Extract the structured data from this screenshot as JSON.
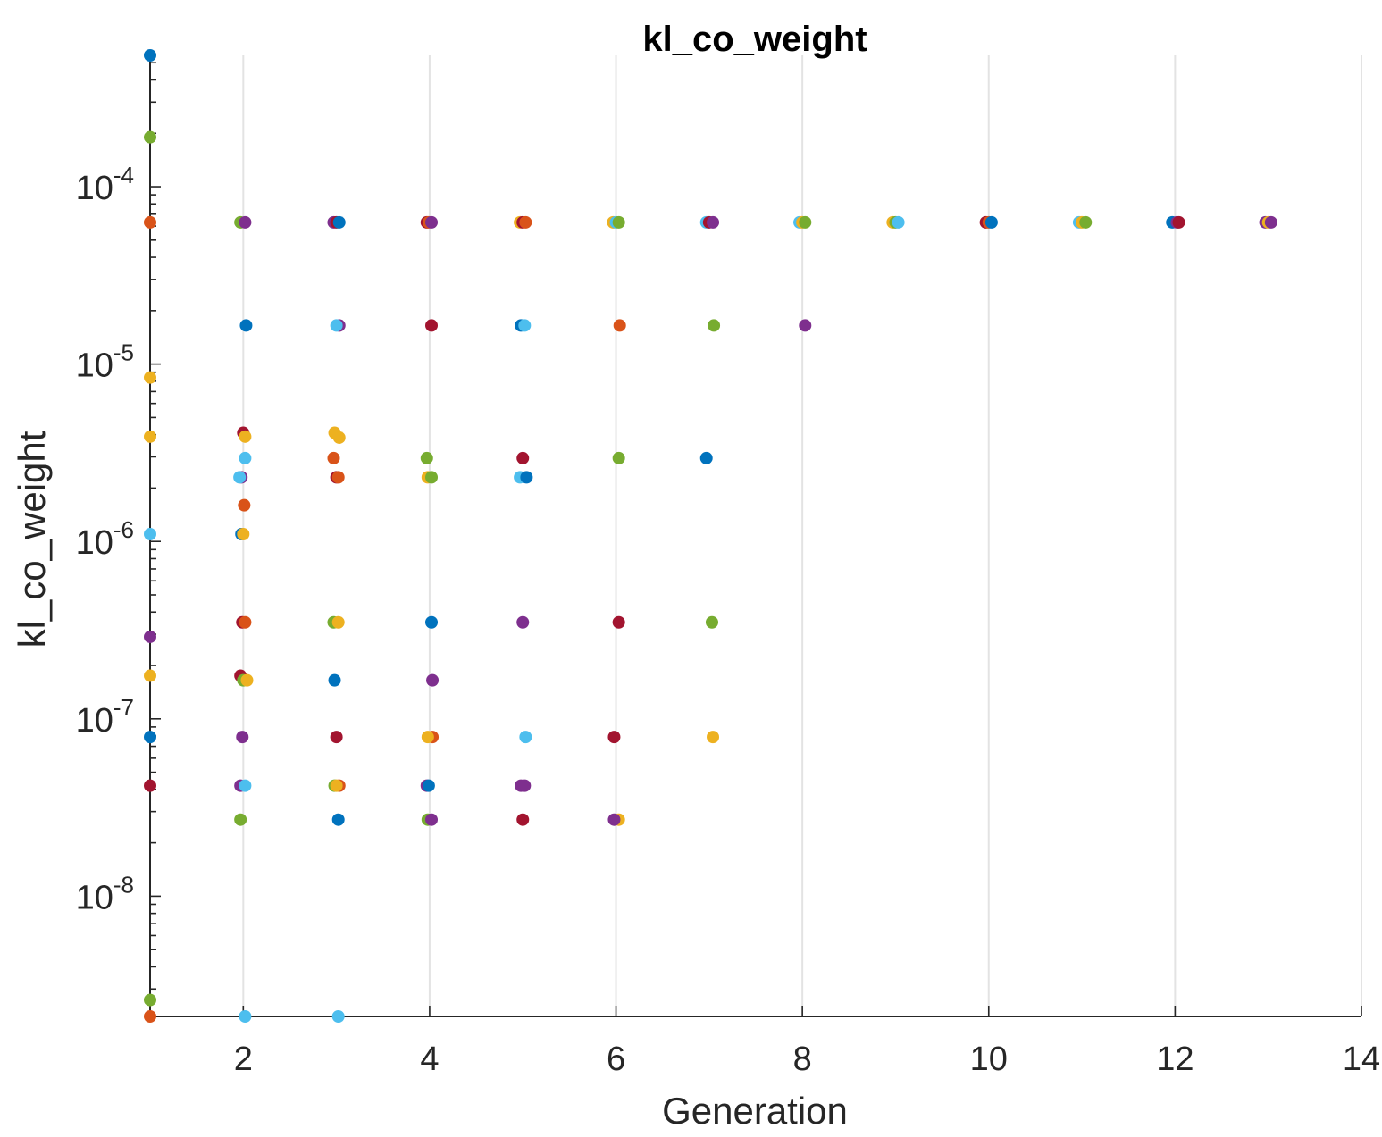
{
  "chart_data": {
    "type": "scatter",
    "title": "kl_co_weight",
    "xlabel": "Generation",
    "ylabel": "kl_co_weight",
    "xlim": [
      1,
      14
    ],
    "ylim": [
      2.1e-09,
      0.00055
    ],
    "yscale": "log",
    "grid": "x-major",
    "x_ticks": [
      {
        "value": 2,
        "label": "2"
      },
      {
        "value": 4,
        "label": "4"
      },
      {
        "value": 6,
        "label": "6"
      },
      {
        "value": 8,
        "label": "8"
      },
      {
        "value": 10,
        "label": "10"
      },
      {
        "value": 12,
        "label": "12"
      },
      {
        "value": 14,
        "label": "14"
      }
    ],
    "y_ticks": [
      {
        "value": 1e-08,
        "base": "10",
        "exp": "-8"
      },
      {
        "value": 1e-07,
        "base": "10",
        "exp": "-7"
      },
      {
        "value": 1e-06,
        "base": "10",
        "exp": "-6"
      },
      {
        "value": 1e-05,
        "base": "10",
        "exp": "-5"
      },
      {
        "value": 0.0001,
        "base": "10",
        "exp": "-4"
      }
    ],
    "palette": {
      "blue": "#0072BD",
      "orange": "#D95319",
      "yellow": "#EDB120",
      "purple": "#7E2F8E",
      "green": "#77AC30",
      "cyan": "#4DBEEE",
      "red": "#A2142F"
    },
    "points": [
      {
        "x": 1.0,
        "y": 0.00055,
        "color": "blue"
      },
      {
        "x": 1.0,
        "y": 0.00019,
        "color": "green"
      },
      {
        "x": 1.0,
        "y": 6.3e-05,
        "color": "orange"
      },
      {
        "x": 1.0,
        "y": 8.4e-06,
        "color": "yellow"
      },
      {
        "x": 1.0,
        "y": 3.9e-06,
        "color": "yellow"
      },
      {
        "x": 1.0,
        "y": 1.1e-06,
        "color": "cyan"
      },
      {
        "x": 1.0,
        "y": 2.9e-07,
        "color": "purple"
      },
      {
        "x": 1.0,
        "y": 1.75e-07,
        "color": "yellow"
      },
      {
        "x": 1.0,
        "y": 7.9e-08,
        "color": "blue"
      },
      {
        "x": 1.0,
        "y": 4.2e-08,
        "color": "red"
      },
      {
        "x": 1.0,
        "y": 2.6e-09,
        "color": "green"
      },
      {
        "x": 1.0,
        "y": 2.1e-09,
        "color": "orange"
      },
      {
        "x": 1.97,
        "y": 6.3e-05,
        "color": "green"
      },
      {
        "x": 2.02,
        "y": 6.3e-05,
        "color": "purple"
      },
      {
        "x": 2.03,
        "y": 1.65e-05,
        "color": "blue"
      },
      {
        "x": 2.0,
        "y": 4.1e-06,
        "color": "red"
      },
      {
        "x": 2.02,
        "y": 3.9e-06,
        "color": "yellow"
      },
      {
        "x": 2.02,
        "y": 2.95e-06,
        "color": "cyan"
      },
      {
        "x": 1.98,
        "y": 2.3e-06,
        "color": "purple"
      },
      {
        "x": 1.96,
        "y": 2.3e-06,
        "color": "cyan"
      },
      {
        "x": 2.01,
        "y": 1.6e-06,
        "color": "orange"
      },
      {
        "x": 1.98,
        "y": 1.1e-06,
        "color": "blue"
      },
      {
        "x": 2.0,
        "y": 1.1e-06,
        "color": "yellow"
      },
      {
        "x": 1.99,
        "y": 3.5e-07,
        "color": "red"
      },
      {
        "x": 2.02,
        "y": 3.5e-07,
        "color": "orange"
      },
      {
        "x": 1.97,
        "y": 1.75e-07,
        "color": "red"
      },
      {
        "x": 2.0,
        "y": 1.65e-07,
        "color": "green"
      },
      {
        "x": 2.04,
        "y": 1.65e-07,
        "color": "yellow"
      },
      {
        "x": 1.99,
        "y": 7.9e-08,
        "color": "purple"
      },
      {
        "x": 1.97,
        "y": 4.2e-08,
        "color": "purple"
      },
      {
        "x": 2.02,
        "y": 4.2e-08,
        "color": "cyan"
      },
      {
        "x": 1.97,
        "y": 2.7e-08,
        "color": "green"
      },
      {
        "x": 2.02,
        "y": 2.1e-09,
        "color": "cyan"
      },
      {
        "x": 2.97,
        "y": 6.3e-05,
        "color": "purple"
      },
      {
        "x": 3.0,
        "y": 6.3e-05,
        "color": "red"
      },
      {
        "x": 3.03,
        "y": 6.3e-05,
        "color": "blue"
      },
      {
        "x": 3.03,
        "y": 1.65e-05,
        "color": "purple"
      },
      {
        "x": 3.0,
        "y": 1.65e-05,
        "color": "cyan"
      },
      {
        "x": 2.98,
        "y": 4.1e-06,
        "color": "yellow"
      },
      {
        "x": 3.03,
        "y": 3.85e-06,
        "color": "yellow"
      },
      {
        "x": 2.97,
        "y": 2.95e-06,
        "color": "orange"
      },
      {
        "x": 3.0,
        "y": 2.3e-06,
        "color": "red"
      },
      {
        "x": 3.02,
        "y": 2.3e-06,
        "color": "orange"
      },
      {
        "x": 2.97,
        "y": 3.5e-07,
        "color": "green"
      },
      {
        "x": 3.02,
        "y": 3.5e-07,
        "color": "yellow"
      },
      {
        "x": 2.98,
        "y": 1.65e-07,
        "color": "blue"
      },
      {
        "x": 3.0,
        "y": 7.9e-08,
        "color": "red"
      },
      {
        "x": 2.98,
        "y": 4.2e-08,
        "color": "green"
      },
      {
        "x": 3.03,
        "y": 4.2e-08,
        "color": "orange"
      },
      {
        "x": 3.0,
        "y": 4.2e-08,
        "color": "yellow"
      },
      {
        "x": 3.02,
        "y": 2.7e-08,
        "color": "blue"
      },
      {
        "x": 3.02,
        "y": 2.1e-09,
        "color": "cyan"
      },
      {
        "x": 3.97,
        "y": 6.3e-05,
        "color": "red"
      },
      {
        "x": 3.99,
        "y": 6.3e-05,
        "color": "orange"
      },
      {
        "x": 4.02,
        "y": 6.3e-05,
        "color": "purple"
      },
      {
        "x": 4.02,
        "y": 1.65e-05,
        "color": "red"
      },
      {
        "x": 3.97,
        "y": 2.95e-06,
        "color": "green"
      },
      {
        "x": 3.98,
        "y": 2.3e-06,
        "color": "yellow"
      },
      {
        "x": 4.02,
        "y": 2.3e-06,
        "color": "green"
      },
      {
        "x": 4.02,
        "y": 3.5e-07,
        "color": "blue"
      },
      {
        "x": 4.03,
        "y": 1.65e-07,
        "color": "purple"
      },
      {
        "x": 4.03,
        "y": 7.9e-08,
        "color": "orange"
      },
      {
        "x": 3.98,
        "y": 7.9e-08,
        "color": "yellow"
      },
      {
        "x": 3.97,
        "y": 4.2e-08,
        "color": "purple"
      },
      {
        "x": 3.99,
        "y": 4.2e-08,
        "color": "blue"
      },
      {
        "x": 3.98,
        "y": 2.7e-08,
        "color": "green"
      },
      {
        "x": 4.02,
        "y": 2.7e-08,
        "color": "purple"
      },
      {
        "x": 4.97,
        "y": 6.3e-05,
        "color": "yellow"
      },
      {
        "x": 5.0,
        "y": 6.3e-05,
        "color": "red"
      },
      {
        "x": 5.03,
        "y": 6.3e-05,
        "color": "orange"
      },
      {
        "x": 4.98,
        "y": 1.65e-05,
        "color": "blue"
      },
      {
        "x": 5.02,
        "y": 1.65e-05,
        "color": "cyan"
      },
      {
        "x": 5.0,
        "y": 2.95e-06,
        "color": "red"
      },
      {
        "x": 4.97,
        "y": 2.3e-06,
        "color": "cyan"
      },
      {
        "x": 5.04,
        "y": 2.3e-06,
        "color": "blue"
      },
      {
        "x": 5.0,
        "y": 3.5e-07,
        "color": "purple"
      },
      {
        "x": 5.03,
        "y": 7.9e-08,
        "color": "cyan"
      },
      {
        "x": 4.98,
        "y": 4.2e-08,
        "color": "purple"
      },
      {
        "x": 5.02,
        "y": 4.2e-08,
        "color": "purple"
      },
      {
        "x": 5.0,
        "y": 2.7e-08,
        "color": "red"
      },
      {
        "x": 5.97,
        "y": 6.3e-05,
        "color": "yellow"
      },
      {
        "x": 6.0,
        "y": 6.3e-05,
        "color": "cyan"
      },
      {
        "x": 6.03,
        "y": 6.3e-05,
        "color": "green"
      },
      {
        "x": 6.04,
        "y": 1.65e-05,
        "color": "orange"
      },
      {
        "x": 6.03,
        "y": 2.95e-06,
        "color": "green"
      },
      {
        "x": 6.03,
        "y": 3.5e-07,
        "color": "red"
      },
      {
        "x": 5.98,
        "y": 7.9e-08,
        "color": "red"
      },
      {
        "x": 6.03,
        "y": 2.7e-08,
        "color": "yellow"
      },
      {
        "x": 5.98,
        "y": 2.7e-08,
        "color": "purple"
      },
      {
        "x": 6.97,
        "y": 6.3e-05,
        "color": "cyan"
      },
      {
        "x": 7.0,
        "y": 6.3e-05,
        "color": "red"
      },
      {
        "x": 7.04,
        "y": 6.3e-05,
        "color": "purple"
      },
      {
        "x": 7.05,
        "y": 1.65e-05,
        "color": "green"
      },
      {
        "x": 6.97,
        "y": 2.95e-06,
        "color": "blue"
      },
      {
        "x": 7.03,
        "y": 3.5e-07,
        "color": "green"
      },
      {
        "x": 7.04,
        "y": 7.9e-08,
        "color": "yellow"
      },
      {
        "x": 7.97,
        "y": 6.3e-05,
        "color": "cyan"
      },
      {
        "x": 8.0,
        "y": 6.3e-05,
        "color": "yellow"
      },
      {
        "x": 8.03,
        "y": 6.3e-05,
        "color": "green"
      },
      {
        "x": 8.03,
        "y": 1.65e-05,
        "color": "purple"
      },
      {
        "x": 8.97,
        "y": 6.3e-05,
        "color": "yellow"
      },
      {
        "x": 9.0,
        "y": 6.3e-05,
        "color": "green"
      },
      {
        "x": 9.03,
        "y": 6.3e-05,
        "color": "cyan"
      },
      {
        "x": 9.97,
        "y": 6.3e-05,
        "color": "red"
      },
      {
        "x": 10.0,
        "y": 6.3e-05,
        "color": "orange"
      },
      {
        "x": 10.03,
        "y": 6.3e-05,
        "color": "blue"
      },
      {
        "x": 10.97,
        "y": 6.3e-05,
        "color": "cyan"
      },
      {
        "x": 11.0,
        "y": 6.3e-05,
        "color": "yellow"
      },
      {
        "x": 11.04,
        "y": 6.3e-05,
        "color": "green"
      },
      {
        "x": 11.97,
        "y": 6.3e-05,
        "color": "blue"
      },
      {
        "x": 12.02,
        "y": 6.3e-05,
        "color": "purple"
      },
      {
        "x": 12.04,
        "y": 6.3e-05,
        "color": "red"
      },
      {
        "x": 12.97,
        "y": 6.3e-05,
        "color": "purple"
      },
      {
        "x": 13.0,
        "y": 6.3e-05,
        "color": "yellow"
      },
      {
        "x": 13.03,
        "y": 6.3e-05,
        "color": "purple"
      }
    ]
  }
}
